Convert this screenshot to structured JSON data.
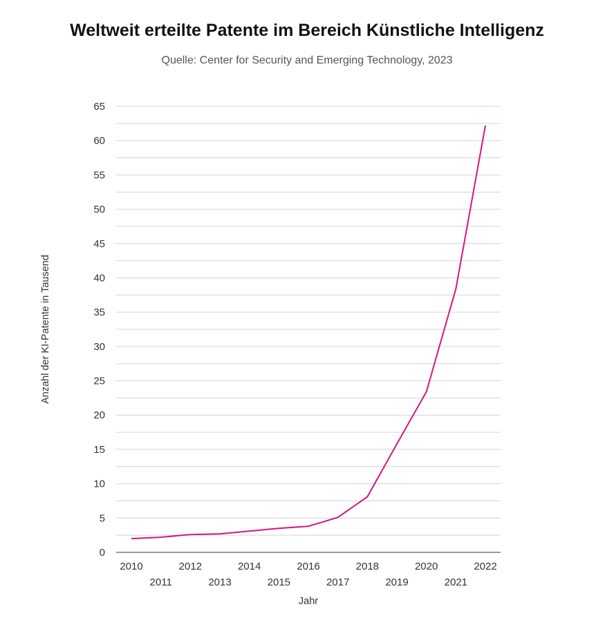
{
  "chart_data": {
    "type": "line",
    "title": "Weltweit erteilte Patente im Bereich Künstliche Intelligenz",
    "subtitle": "Quelle: Center for Security and Emerging Technology, 2023",
    "xlabel": "Jahr",
    "ylabel": "Anzahl der KI-Patente in Tausend",
    "x": [
      "2010",
      "2011",
      "2012",
      "2013",
      "2014",
      "2015",
      "2016",
      "2017",
      "2018",
      "2019",
      "2020",
      "2021",
      "2022"
    ],
    "series": [
      {
        "name": "KI-Patente",
        "values": [
          2.0,
          2.2,
          2.6,
          2.7,
          3.1,
          3.5,
          3.8,
          5.1,
          8.1,
          15.8,
          23.4,
          38.4,
          62.2
        ]
      }
    ],
    "ylim": [
      0,
      65
    ],
    "yticks": [
      0,
      5,
      10,
      15,
      20,
      25,
      30,
      35,
      40,
      45,
      50,
      55,
      60,
      65
    ],
    "grid": true,
    "line_color": "#d6157e"
  }
}
